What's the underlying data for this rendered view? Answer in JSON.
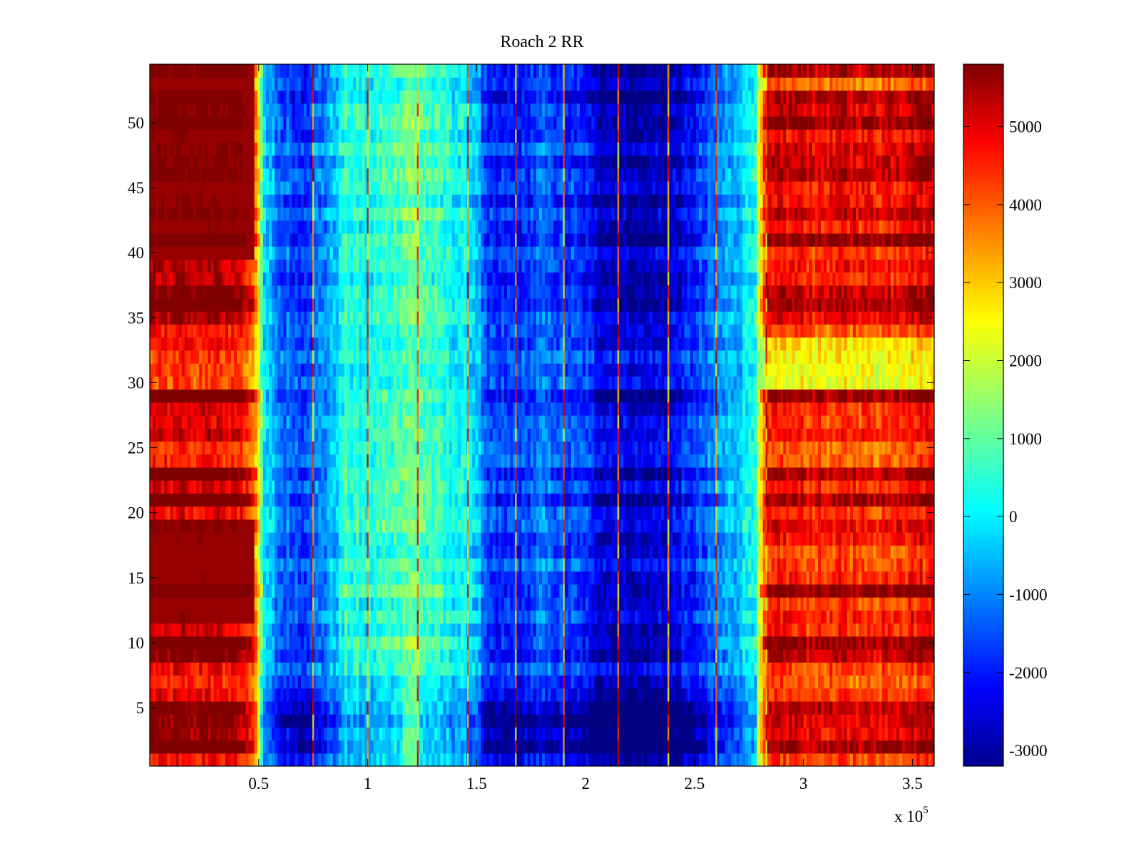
{
  "chart_data": {
    "type": "heatmap",
    "title": "Roach 2 RR",
    "xlabel": "",
    "ylabel": "",
    "x_exponent_label": "x 10",
    "x_exponent_power": "5",
    "xlim": [
      0,
      3.6
    ],
    "ylim": [
      0.5,
      54.5
    ],
    "x_ticks": [
      0.5,
      1,
      1.5,
      2,
      2.5,
      3,
      3.5
    ],
    "x_tick_labels": [
      "0.5",
      "1",
      "1.5",
      "2",
      "2.5",
      "3",
      "3.5"
    ],
    "y_ticks": [
      5,
      10,
      15,
      20,
      25,
      30,
      35,
      40,
      45,
      50
    ],
    "y_tick_labels": [
      "5",
      "10",
      "15",
      "20",
      "25",
      "30",
      "35",
      "40",
      "45",
      "50"
    ],
    "colorbar": {
      "colormap": "jet",
      "range": [
        -3200,
        5800
      ],
      "ticks": [
        -3000,
        -2000,
        -1000,
        0,
        1000,
        2000,
        3000,
        4000,
        5000
      ],
      "tick_labels": [
        "-3000",
        "-2000",
        "-1000",
        "0",
        "1000",
        "2000",
        "3000",
        "4000",
        "5000"
      ]
    },
    "rows": 54,
    "profile_x": [
      0,
      0.4,
      0.48,
      0.5,
      0.52,
      0.6,
      0.7,
      0.8,
      0.85,
      0.9,
      1.0,
      1.1,
      1.2,
      1.3,
      1.4,
      1.5,
      1.55,
      1.7,
      1.8,
      1.9,
      2.0,
      2.05,
      2.15,
      2.25,
      2.4,
      2.5,
      2.6,
      2.7,
      2.78,
      2.83,
      2.9,
      3.0,
      3.1,
      3.2,
      3.3,
      3.4,
      3.5,
      3.6
    ],
    "profile_value": [
      5400,
      5300,
      4200,
      2500,
      0,
      -1200,
      -1500,
      -900,
      -300,
      500,
      300,
      700,
      1200,
      600,
      300,
      -200,
      -1800,
      -1700,
      -1200,
      -1500,
      -1800,
      -2300,
      -2500,
      -2700,
      -2400,
      -1800,
      -1000,
      -300,
      600,
      4500,
      4800,
      4600,
      4500,
      4700,
      4500,
      4600,
      4900,
      5000
    ],
    "striped_line_x": [
      0.75,
      1.0,
      1.23,
      1.46,
      1.68,
      1.9,
      2.15,
      2.38,
      2.6,
      2.83
    ]
  }
}
